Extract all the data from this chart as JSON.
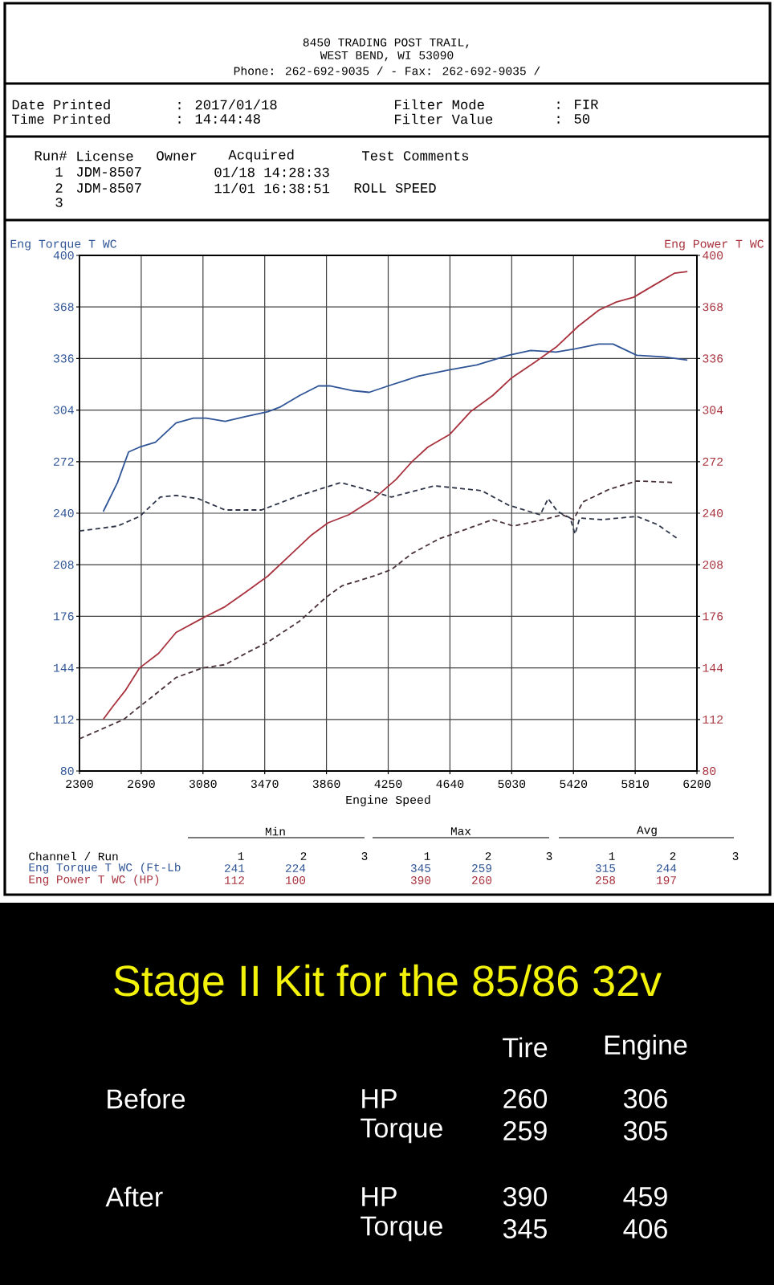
{
  "chart_data": {
    "type": "line",
    "title": "Stage II Kit for the 85/86 32v",
    "xlabel": "Engine Speed",
    "ylabel": "Eng Torque T WC",
    "y2label": "Eng Power T WC",
    "xlim": [
      2300,
      6200
    ],
    "xticks": [
      2300,
      2690,
      3080,
      3470,
      3860,
      4250,
      4640,
      5030,
      5420,
      5810,
      6200
    ],
    "ylim": [
      80,
      400
    ],
    "yticks": [
      80,
      112,
      144,
      176,
      208,
      240,
      272,
      304,
      336,
      368,
      400
    ],
    "y2lim": [
      80,
      400
    ],
    "y2ticks": [
      80,
      112,
      144,
      176,
      208,
      240,
      272,
      304,
      336,
      368,
      400
    ],
    "grid": true,
    "series": [
      {
        "color": "#2f5597",
        "line_style": "solid",
        "x": [
          2450,
          2540,
          2610,
          2680,
          2780,
          2910,
          3020,
          3100,
          3220,
          3350,
          3490,
          3570,
          3690,
          3810,
          3880,
          4030,
          4130,
          4250,
          4440,
          4640,
          4810,
          5010,
          5150,
          5310,
          5430,
          5580,
          5670,
          5820,
          5990,
          6140
        ],
        "values": [
          241,
          259,
          278,
          281,
          284,
          296,
          299,
          299,
          297,
          300,
          303,
          306,
          313,
          319,
          319,
          316,
          315,
          319,
          325,
          329,
          332,
          338,
          341,
          340,
          342,
          345,
          345,
          338,
          337,
          335
        ]
      },
      {
        "color": "#a8323e",
        "line_style": "solid",
        "axis": "y2",
        "x": [
          2450,
          2510,
          2590,
          2680,
          2800,
          2910,
          3080,
          3220,
          3350,
          3490,
          3620,
          3760,
          3870,
          4000,
          4160,
          4300,
          4400,
          4500,
          4640,
          4770,
          4910,
          5030,
          5180,
          5310,
          5450,
          5580,
          5690,
          5800,
          5920,
          6060,
          6140
        ],
        "values": [
          112,
          120,
          130,
          144,
          153,
          166,
          175,
          182,
          191,
          201,
          213,
          226,
          234,
          239,
          249,
          261,
          272,
          281,
          289,
          303,
          313,
          324,
          334,
          343,
          356,
          366,
          371,
          374,
          381,
          389,
          390
        ]
      },
      {
        "color": "#2e3548",
        "line_style": "dashed",
        "x": [
          2300,
          2540,
          2680,
          2810,
          2910,
          3050,
          3220,
          3450,
          3690,
          3950,
          4100,
          4270,
          4540,
          4840,
          5010,
          5210,
          5260,
          5320,
          5400,
          5430,
          5460,
          5600,
          5820,
          5950,
          6080
        ],
        "values": [
          229,
          232,
          238,
          250,
          251,
          249,
          242,
          242,
          251,
          259,
          255,
          250,
          257,
          254,
          245,
          239,
          249,
          241,
          237,
          227,
          237,
          236,
          238,
          233,
          224
        ]
      },
      {
        "color": "#48303a",
        "line_style": "dashed",
        "axis": "y2",
        "x": [
          2300,
          2580,
          2680,
          2810,
          2910,
          3080,
          3220,
          3350,
          3490,
          3690,
          3860,
          3960,
          4160,
          4270,
          4400,
          4570,
          4740,
          4910,
          5040,
          5230,
          5350,
          5420,
          5480,
          5650,
          5820,
          6060
        ],
        "values": [
          100,
          112,
          120,
          130,
          138,
          144,
          146,
          153,
          160,
          173,
          188,
          195,
          201,
          205,
          215,
          224,
          230,
          236,
          232,
          236,
          239,
          236,
          247,
          255,
          260,
          259
        ]
      }
    ],
    "annotations": [
      "8450 TRADING POST TRAIL,",
      "WEST BEND, WI 53090",
      "Phone: 262-692-9035 / - Fax: 262-692-9035 /",
      "Date Printed",
      ": 2017/01/18",
      "Filter Mode",
      ": FIR",
      "Time Printed",
      ": 14:44:48",
      "Filter Value",
      ": 50",
      "Run#",
      "License",
      "Owner",
      "Acquired",
      "Test Comments",
      "1",
      "JDM-8507",
      "01/18 14:28:33",
      "2",
      "JDM-8507",
      "11/01 16:38:51",
      "ROLL SPEED",
      "3",
      "Min",
      "Max",
      "Avg",
      "Channel / Run",
      "1",
      "2",
      "3",
      "1",
      "2",
      "3",
      "1",
      "2",
      "3",
      "Eng Torque T WC (Ft-Lb",
      "241",
      "224",
      "345",
      "259",
      "315",
      "244",
      "Eng Power T WC (HP)",
      "112",
      "100",
      "390",
      "260",
      "258",
      "197",
      "Tire",
      "Engine",
      "Before",
      "HP",
      "260",
      "306",
      "Torque",
      "259",
      "305",
      "After",
      "HP",
      "390",
      "459",
      "Torque",
      "345",
      "406"
    ]
  }
}
